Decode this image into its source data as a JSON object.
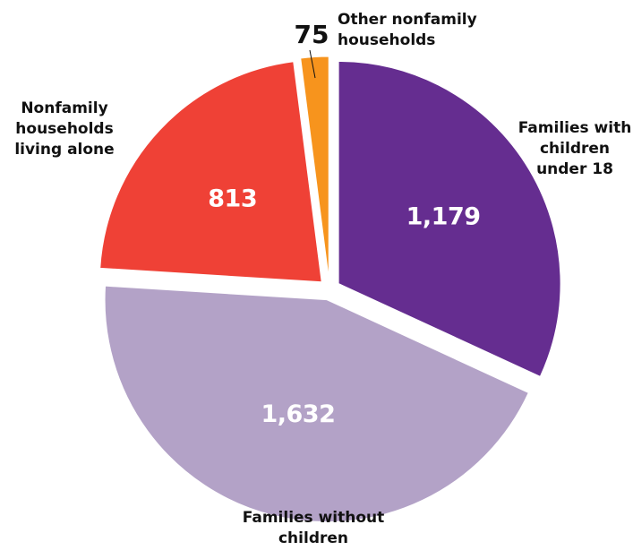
{
  "chart_data": {
    "type": "pie",
    "title": "",
    "start_angle_deg": 0,
    "direction": "clockwise",
    "explode": true,
    "slices": [
      {
        "label_lines": [
          "Families with",
          "children",
          "under 18"
        ],
        "value": 1179,
        "value_label": "1,179",
        "color": "#652d90"
      },
      {
        "label_lines": [
          "Families without",
          "children"
        ],
        "value": 1632,
        "value_label": "1,632",
        "color": "#b3a2c7"
      },
      {
        "label_lines": [
          "Nonfamily",
          "households",
          "living alone"
        ],
        "value": 813,
        "value_label": "813",
        "color": "#ef4136"
      },
      {
        "label_lines": [
          "Other nonfamily",
          "households"
        ],
        "value": 75,
        "value_label": "75",
        "color": "#f7941d"
      }
    ]
  }
}
